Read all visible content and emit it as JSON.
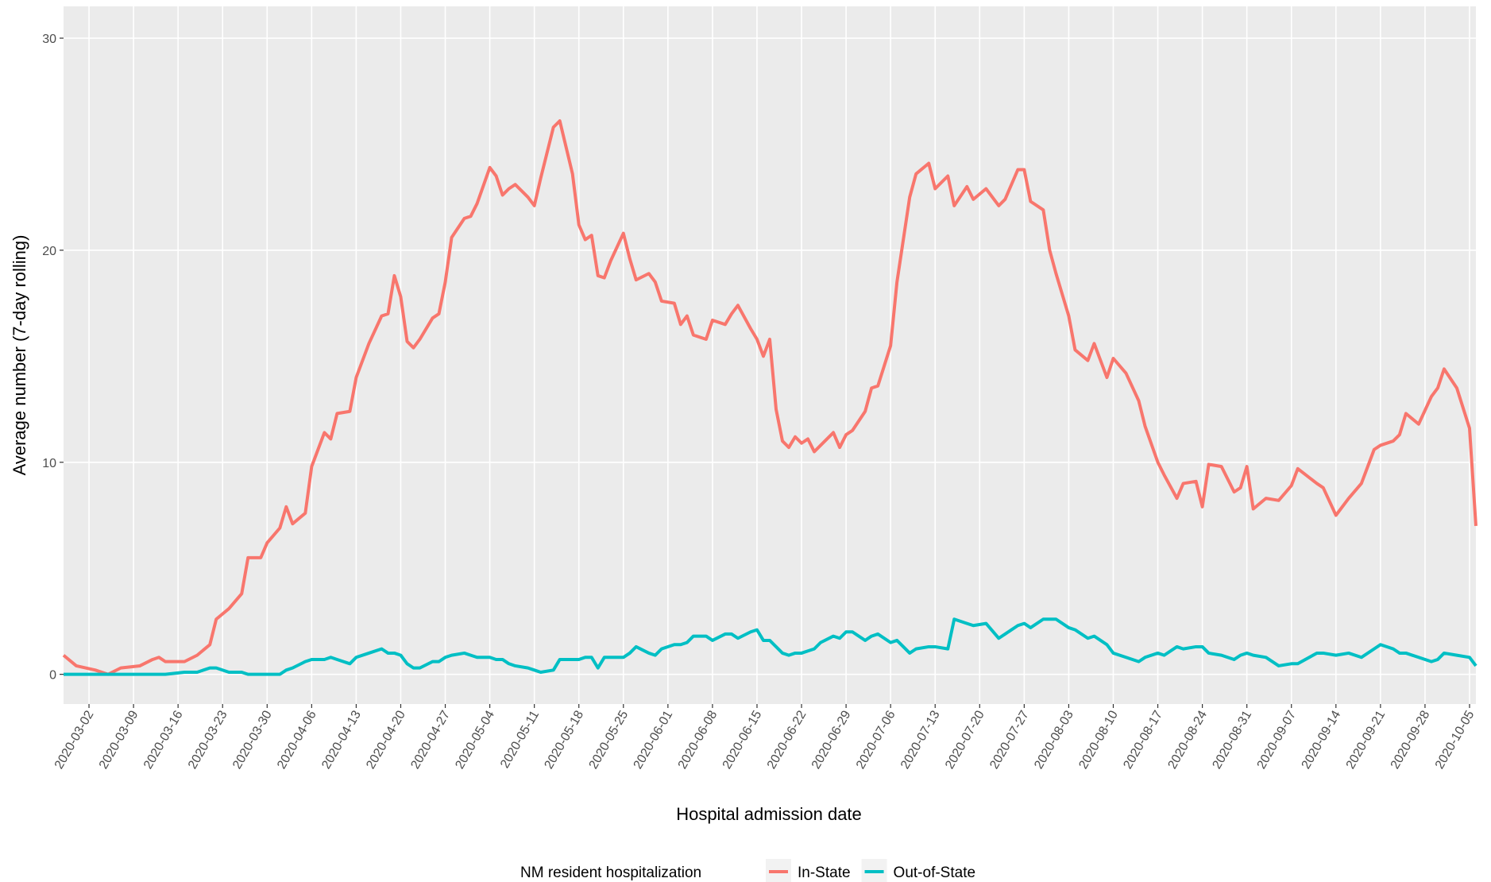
{
  "chart_data": {
    "type": "line",
    "x_label": "Hospital admission date",
    "y_label": "Average number (7-day rolling)",
    "legend_title": "NM resident hospitalization",
    "legend_position": "bottom",
    "grid": true,
    "xlim": [
      "2020-02-27",
      "2020-10-06"
    ],
    "ylim": [
      -1.4,
      31.5
    ],
    "yticks": [
      0,
      10,
      20,
      30
    ],
    "xticks": [
      "2020-03-02",
      "2020-03-09",
      "2020-03-16",
      "2020-03-23",
      "2020-03-30",
      "2020-04-06",
      "2020-04-13",
      "2020-04-20",
      "2020-04-27",
      "2020-05-04",
      "2020-05-11",
      "2020-05-18",
      "2020-05-25",
      "2020-06-01",
      "2020-06-08",
      "2020-06-15",
      "2020-06-22",
      "2020-06-29",
      "2020-07-06",
      "2020-07-13",
      "2020-07-20",
      "2020-07-27",
      "2020-08-03",
      "2020-08-10",
      "2020-08-17",
      "2020-08-24",
      "2020-08-31",
      "2020-09-07",
      "2020-09-14",
      "2020-09-21",
      "2020-09-28",
      "2020-10-05"
    ],
    "x": [
      "2020-02-27",
      "2020-02-29",
      "2020-03-03",
      "2020-03-05",
      "2020-03-07",
      "2020-03-10",
      "2020-03-12",
      "2020-03-13",
      "2020-03-14",
      "2020-03-17",
      "2020-03-19",
      "2020-03-21",
      "2020-03-22",
      "2020-03-24",
      "2020-03-26",
      "2020-03-27",
      "2020-03-29",
      "2020-03-30",
      "2020-04-01",
      "2020-04-02",
      "2020-04-03",
      "2020-04-05",
      "2020-04-06",
      "2020-04-08",
      "2020-04-09",
      "2020-04-10",
      "2020-04-12",
      "2020-04-13",
      "2020-04-15",
      "2020-04-17",
      "2020-04-18",
      "2020-04-19",
      "2020-04-20",
      "2020-04-21",
      "2020-04-22",
      "2020-04-23",
      "2020-04-25",
      "2020-04-26",
      "2020-04-27",
      "2020-04-28",
      "2020-04-30",
      "2020-05-01",
      "2020-05-02",
      "2020-05-04",
      "2020-05-05",
      "2020-05-06",
      "2020-05-07",
      "2020-05-08",
      "2020-05-10",
      "2020-05-11",
      "2020-05-12",
      "2020-05-14",
      "2020-05-15",
      "2020-05-17",
      "2020-05-18",
      "2020-05-19",
      "2020-05-20",
      "2020-05-21",
      "2020-05-22",
      "2020-05-23",
      "2020-05-25",
      "2020-05-26",
      "2020-05-27",
      "2020-05-29",
      "2020-05-30",
      "2020-05-31",
      "2020-06-02",
      "2020-06-03",
      "2020-06-04",
      "2020-06-05",
      "2020-06-07",
      "2020-06-08",
      "2020-06-10",
      "2020-06-11",
      "2020-06-12",
      "2020-06-14",
      "2020-06-15",
      "2020-06-16",
      "2020-06-17",
      "2020-06-18",
      "2020-06-19",
      "2020-06-20",
      "2020-06-21",
      "2020-06-22",
      "2020-06-23",
      "2020-06-24",
      "2020-06-25",
      "2020-06-27",
      "2020-06-28",
      "2020-06-29",
      "2020-06-30",
      "2020-07-02",
      "2020-07-03",
      "2020-07-04",
      "2020-07-06",
      "2020-07-07",
      "2020-07-09",
      "2020-07-10",
      "2020-07-12",
      "2020-07-13",
      "2020-07-15",
      "2020-07-16",
      "2020-07-18",
      "2020-07-19",
      "2020-07-21",
      "2020-07-23",
      "2020-07-24",
      "2020-07-26",
      "2020-07-27",
      "2020-07-28",
      "2020-07-30",
      "2020-07-31",
      "2020-08-01",
      "2020-08-03",
      "2020-08-04",
      "2020-08-06",
      "2020-08-07",
      "2020-08-09",
      "2020-08-10",
      "2020-08-12",
      "2020-08-14",
      "2020-08-15",
      "2020-08-17",
      "2020-08-18",
      "2020-08-20",
      "2020-08-21",
      "2020-08-23",
      "2020-08-24",
      "2020-08-25",
      "2020-08-27",
      "2020-08-29",
      "2020-08-30",
      "2020-08-31",
      "2020-09-01",
      "2020-09-03",
      "2020-09-05",
      "2020-09-07",
      "2020-09-08",
      "2020-09-11",
      "2020-09-12",
      "2020-09-14",
      "2020-09-16",
      "2020-09-18",
      "2020-09-20",
      "2020-09-21",
      "2020-09-23",
      "2020-09-24",
      "2020-09-25",
      "2020-09-27",
      "2020-09-29",
      "2020-09-30",
      "2020-10-01",
      "2020-10-03",
      "2020-10-05",
      "2020-10-06"
    ],
    "series": [
      {
        "name": "In-State",
        "color": "#F8766D",
        "values": [
          0.9,
          0.4,
          0.2,
          0.0,
          0.3,
          0.4,
          0.7,
          0.8,
          0.6,
          0.6,
          0.9,
          1.4,
          2.6,
          3.1,
          3.8,
          5.5,
          5.5,
          6.2,
          6.9,
          7.9,
          7.1,
          7.6,
          9.8,
          11.4,
          11.1,
          12.3,
          12.4,
          14.0,
          15.6,
          16.9,
          17.0,
          18.8,
          17.8,
          15.7,
          15.4,
          15.8,
          16.8,
          17.0,
          18.5,
          20.6,
          21.5,
          21.6,
          22.2,
          23.9,
          23.5,
          22.6,
          22.9,
          23.1,
          22.5,
          22.1,
          23.4,
          25.8,
          26.1,
          23.6,
          21.2,
          20.5,
          20.7,
          18.8,
          18.7,
          19.5,
          20.8,
          19.6,
          18.6,
          18.9,
          18.5,
          17.6,
          17.5,
          16.5,
          16.9,
          16.0,
          15.8,
          16.7,
          16.5,
          17.0,
          17.4,
          16.3,
          15.8,
          15.0,
          15.8,
          12.5,
          11.0,
          10.7,
          11.2,
          10.9,
          11.1,
          10.5,
          10.8,
          11.4,
          10.7,
          11.3,
          11.5,
          12.4,
          13.5,
          13.6,
          15.5,
          18.5,
          22.5,
          23.6,
          24.1,
          22.9,
          23.5,
          22.1,
          23.0,
          22.4,
          22.9,
          22.1,
          22.4,
          23.8,
          23.8,
          22.3,
          21.9,
          20.0,
          18.9,
          16.9,
          15.3,
          14.8,
          15.6,
          14.0,
          14.9,
          14.2,
          12.9,
          11.7,
          10.0,
          9.4,
          8.3,
          9.0,
          9.1,
          7.9,
          9.9,
          9.8,
          8.6,
          8.8,
          9.8,
          7.8,
          8.3,
          8.2,
          8.9,
          9.7,
          9.0,
          8.8,
          7.5,
          8.3,
          9.0,
          10.6,
          10.8,
          11.0,
          11.3,
          12.3,
          11.8,
          13.1,
          13.5,
          14.4,
          13.5,
          11.6,
          7.0
        ]
      },
      {
        "name": "Out-of-State",
        "color": "#00BFC4",
        "values": [
          0,
          0,
          0,
          0,
          0,
          0,
          0,
          0,
          0,
          0.1,
          0.1,
          0.3,
          0.3,
          0.1,
          0.1,
          0.0,
          0.0,
          0.0,
          0.0,
          0.2,
          0.3,
          0.6,
          0.7,
          0.7,
          0.8,
          0.7,
          0.5,
          0.8,
          1.0,
          1.2,
          1.0,
          1.0,
          0.9,
          0.5,
          0.3,
          0.3,
          0.6,
          0.6,
          0.8,
          0.9,
          1.0,
          0.9,
          0.8,
          0.8,
          0.7,
          0.7,
          0.5,
          0.4,
          0.3,
          0.2,
          0.1,
          0.2,
          0.7,
          0.7,
          0.7,
          0.8,
          0.8,
          0.3,
          0.8,
          0.8,
          0.8,
          1.0,
          1.3,
          1.0,
          0.9,
          1.2,
          1.4,
          1.4,
          1.5,
          1.8,
          1.8,
          1.6,
          1.9,
          1.9,
          1.7,
          2.0,
          2.1,
          1.6,
          1.6,
          1.3,
          1.0,
          0.9,
          1.0,
          1.0,
          1.1,
          1.2,
          1.5,
          1.8,
          1.7,
          2.0,
          2.0,
          1.6,
          1.8,
          1.9,
          1.5,
          1.6,
          1.0,
          1.2,
          1.3,
          1.3,
          1.2,
          2.6,
          2.4,
          2.3,
          2.4,
          1.7,
          1.9,
          2.3,
          2.4,
          2.2,
          2.6,
          2.6,
          2.6,
          2.2,
          2.1,
          1.7,
          1.8,
          1.4,
          1.0,
          0.8,
          0.6,
          0.8,
          1.0,
          0.9,
          1.3,
          1.2,
          1.3,
          1.3,
          1.0,
          0.9,
          0.7,
          0.9,
          1.0,
          0.9,
          0.8,
          0.4,
          0.5,
          0.5,
          1.0,
          1.0,
          0.9,
          1.0,
          0.8,
          1.2,
          1.4,
          1.2,
          1.0,
          1.0,
          0.8,
          0.6,
          0.7,
          1.0,
          0.9,
          0.8,
          0.4
        ]
      }
    ]
  }
}
